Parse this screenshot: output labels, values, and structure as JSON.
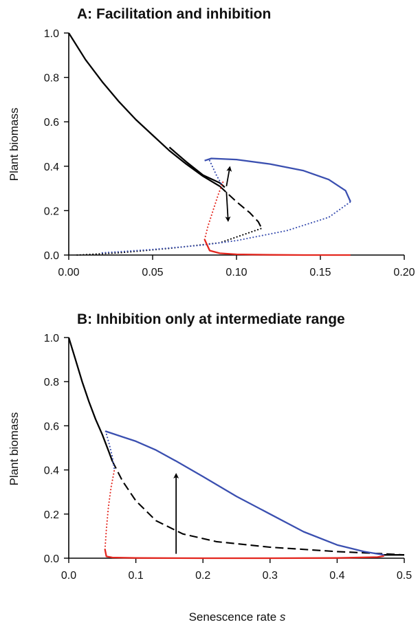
{
  "figure": {
    "xlabel_text": "Senescence rate",
    "xlabel_symbol": "s"
  },
  "chart_data": [
    {
      "type": "line",
      "title": "A: Facilitation and inhibition",
      "ylabel": "Plant biomass",
      "xlim": [
        0,
        0.2
      ],
      "ylim": [
        0,
        1.0
      ],
      "x_ticks": [
        "0.00",
        "0.05",
        "0.10",
        "0.15",
        "0.20"
      ],
      "y_ticks": [
        "0.0",
        "0.2",
        "0.4",
        "0.6",
        "0.8",
        "1.0"
      ],
      "colors": {
        "black": "#000000",
        "blue": "#3a4fb0",
        "red": "#e3261e"
      },
      "series": [
        {
          "color": "black",
          "style": "solid",
          "points": [
            [
              0,
              1.0
            ],
            [
              0.01,
              0.88
            ],
            [
              0.02,
              0.78
            ],
            [
              0.03,
              0.69
            ],
            [
              0.04,
              0.61
            ],
            [
              0.05,
              0.54
            ],
            [
              0.06,
              0.47
            ],
            [
              0.07,
              0.41
            ],
            [
              0.08,
              0.355
            ],
            [
              0.09,
              0.31
            ]
          ]
        },
        {
          "color": "black",
          "style": "solid",
          "points": [
            [
              0.06,
              0.485
            ],
            [
              0.07,
              0.42
            ],
            [
              0.08,
              0.36
            ],
            [
              0.09,
              0.325
            ],
            [
              0.093,
              0.305
            ]
          ]
        },
        {
          "color": "black",
          "style": "dashed",
          "points": [
            [
              0.09,
              0.31
            ],
            [
              0.1,
              0.24
            ],
            [
              0.108,
              0.19
            ],
            [
              0.113,
              0.15
            ],
            [
              0.115,
              0.12
            ]
          ]
        },
        {
          "color": "black",
          "style": "dotted",
          "points": [
            [
              0.005,
              0.0
            ],
            [
              0.03,
              0.01
            ],
            [
              0.06,
              0.03
            ],
            [
              0.09,
              0.055
            ],
            [
              0.115,
              0.12
            ]
          ]
        },
        {
          "color": "blue",
          "style": "solid",
          "points": [
            [
              0.081,
              0.425
            ],
            [
              0.085,
              0.435
            ],
            [
              0.1,
              0.43
            ],
            [
              0.12,
              0.41
            ],
            [
              0.14,
              0.38
            ],
            [
              0.155,
              0.34
            ],
            [
              0.165,
              0.29
            ],
            [
              0.168,
              0.24
            ]
          ]
        },
        {
          "color": "blue",
          "style": "dotted",
          "points": [
            [
              0.02,
              0.01
            ],
            [
              0.05,
              0.025
            ],
            [
              0.08,
              0.045
            ],
            [
              0.1,
              0.065
            ],
            [
              0.13,
              0.11
            ],
            [
              0.155,
              0.17
            ],
            [
              0.168,
              0.24
            ]
          ]
        },
        {
          "color": "blue",
          "style": "dotted",
          "points": [
            [
              0.084,
              0.425
            ],
            [
              0.088,
              0.36
            ],
            [
              0.091,
              0.32
            ]
          ]
        },
        {
          "color": "red",
          "style": "solid",
          "points": [
            [
              0.081,
              0.07
            ],
            [
              0.084,
              0.02
            ],
            [
              0.09,
              0.008
            ],
            [
              0.1,
              0.003
            ],
            [
              0.12,
              0.001
            ],
            [
              0.14,
              0.0
            ],
            [
              0.168,
              0.0
            ]
          ]
        },
        {
          "color": "red",
          "style": "dotted",
          "points": [
            [
              0.081,
              0.07
            ],
            [
              0.083,
              0.13
            ],
            [
              0.086,
              0.2
            ],
            [
              0.089,
              0.27
            ],
            [
              0.092,
              0.33
            ]
          ]
        }
      ],
      "arrows": [
        {
          "from": [
            0.094,
            0.31
          ],
          "to": [
            0.096,
            0.395
          ]
        },
        {
          "from": [
            0.094,
            0.285
          ],
          "to": [
            0.095,
            0.155
          ]
        }
      ]
    },
    {
      "type": "line",
      "title": "B: Inhibition only at intermediate range",
      "ylabel": "Plant biomass",
      "xlim": [
        0,
        0.5
      ],
      "ylim": [
        0,
        1.0
      ],
      "x_ticks": [
        "0.0",
        "0.1",
        "0.2",
        "0.3",
        "0.4",
        "0.5"
      ],
      "y_ticks": [
        "0.0",
        "0.2",
        "0.4",
        "0.6",
        "0.8",
        "1.0"
      ],
      "colors": {
        "black": "#000000",
        "blue": "#3a4fb0",
        "red": "#e3261e"
      },
      "series": [
        {
          "color": "black",
          "style": "solid",
          "points": [
            [
              0,
              1.0
            ],
            [
              0.01,
              0.9
            ],
            [
              0.02,
              0.8
            ],
            [
              0.03,
              0.71
            ],
            [
              0.04,
              0.63
            ],
            [
              0.05,
              0.56
            ],
            [
              0.06,
              0.48
            ],
            [
              0.065,
              0.44
            ]
          ]
        },
        {
          "color": "black",
          "style": "dashed",
          "points": [
            [
              0.065,
              0.44
            ],
            [
              0.08,
              0.35
            ],
            [
              0.1,
              0.26
            ],
            [
              0.13,
              0.17
            ],
            [
              0.17,
              0.11
            ],
            [
              0.22,
              0.075
            ],
            [
              0.3,
              0.05
            ],
            [
              0.4,
              0.03
            ],
            [
              0.47,
              0.02
            ],
            [
              0.5,
              0.015
            ]
          ]
        },
        {
          "color": "blue",
          "style": "solid",
          "points": [
            [
              0.055,
              0.575
            ],
            [
              0.06,
              0.57
            ],
            [
              0.08,
              0.55
            ],
            [
              0.1,
              0.53
            ],
            [
              0.13,
              0.49
            ],
            [
              0.16,
              0.44
            ],
            [
              0.2,
              0.37
            ],
            [
              0.25,
              0.28
            ],
            [
              0.3,
              0.2
            ],
            [
              0.35,
              0.12
            ],
            [
              0.4,
              0.06
            ],
            [
              0.44,
              0.03
            ],
            [
              0.47,
              0.015
            ]
          ]
        },
        {
          "color": "blue",
          "style": "dotted",
          "points": [
            [
              0.055,
              0.575
            ],
            [
              0.06,
              0.52
            ],
            [
              0.065,
              0.46
            ],
            [
              0.068,
              0.4
            ]
          ]
        },
        {
          "color": "red",
          "style": "solid",
          "points": [
            [
              0.054,
              0.04
            ],
            [
              0.056,
              0.008
            ],
            [
              0.065,
              0.003
            ],
            [
              0.1,
              0.001
            ],
            [
              0.2,
              0.0
            ],
            [
              0.3,
              0.0
            ],
            [
              0.4,
              0.001
            ],
            [
              0.46,
              0.005
            ],
            [
              0.47,
              0.01
            ]
          ]
        },
        {
          "color": "red",
          "style": "dotted",
          "points": [
            [
              0.054,
              0.04
            ],
            [
              0.056,
              0.13
            ],
            [
              0.059,
              0.23
            ],
            [
              0.063,
              0.32
            ],
            [
              0.068,
              0.4
            ]
          ]
        },
        {
          "color": "black",
          "style": "solid",
          "points": [
            [
              0.47,
              0.015
            ],
            [
              0.5,
              0.015
            ]
          ]
        }
      ],
      "arrows": [
        {
          "from": [
            0.16,
            0.02
          ],
          "to": [
            0.16,
            0.38
          ]
        }
      ]
    }
  ]
}
